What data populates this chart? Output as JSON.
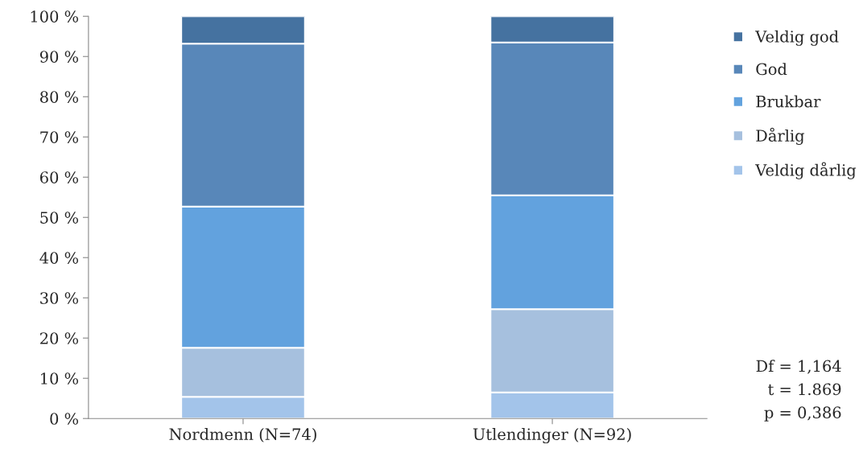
{
  "chart_data": {
    "type": "bar",
    "stacked": true,
    "categories": [
      "Nordmenn (N=74)",
      "Utlendinger (N=92)"
    ],
    "series": [
      {
        "name": "Veldig dårlig",
        "color": "#a3c4ea",
        "values": [
          5.4,
          6.5
        ]
      },
      {
        "name": "Dårlig",
        "color": "#a6c0de",
        "values": [
          12.2,
          20.7
        ]
      },
      {
        "name": "Brukbar",
        "color": "#62a2de",
        "values": [
          35.1,
          28.3
        ]
      },
      {
        "name": "God",
        "color": "#5887b9",
        "values": [
          40.5,
          38.0
        ]
      },
      {
        "name": "Veldig god",
        "color": "#4572a0",
        "values": [
          6.8,
          6.5
        ]
      }
    ],
    "ylim": [
      0,
      100
    ],
    "yticks": [
      {
        "value": 0,
        "label": "0 %"
      },
      {
        "value": 10,
        "label": "10 %"
      },
      {
        "value": 20,
        "label": "20 %"
      },
      {
        "value": 30,
        "label": "30 %"
      },
      {
        "value": 40,
        "label": "40 %"
      },
      {
        "value": 50,
        "label": "50 %"
      },
      {
        "value": 60,
        "label": "60 %"
      },
      {
        "value": 70,
        "label": "70 %"
      },
      {
        "value": 80,
        "label": "80 %"
      },
      {
        "value": 90,
        "label": "90 %"
      },
      {
        "value": 100,
        "label": "100 %"
      }
    ],
    "grid": false,
    "legend": "right",
    "annotations": [
      "Df = 1,164",
      "t = 1.869",
      "p = 0,386"
    ]
  }
}
